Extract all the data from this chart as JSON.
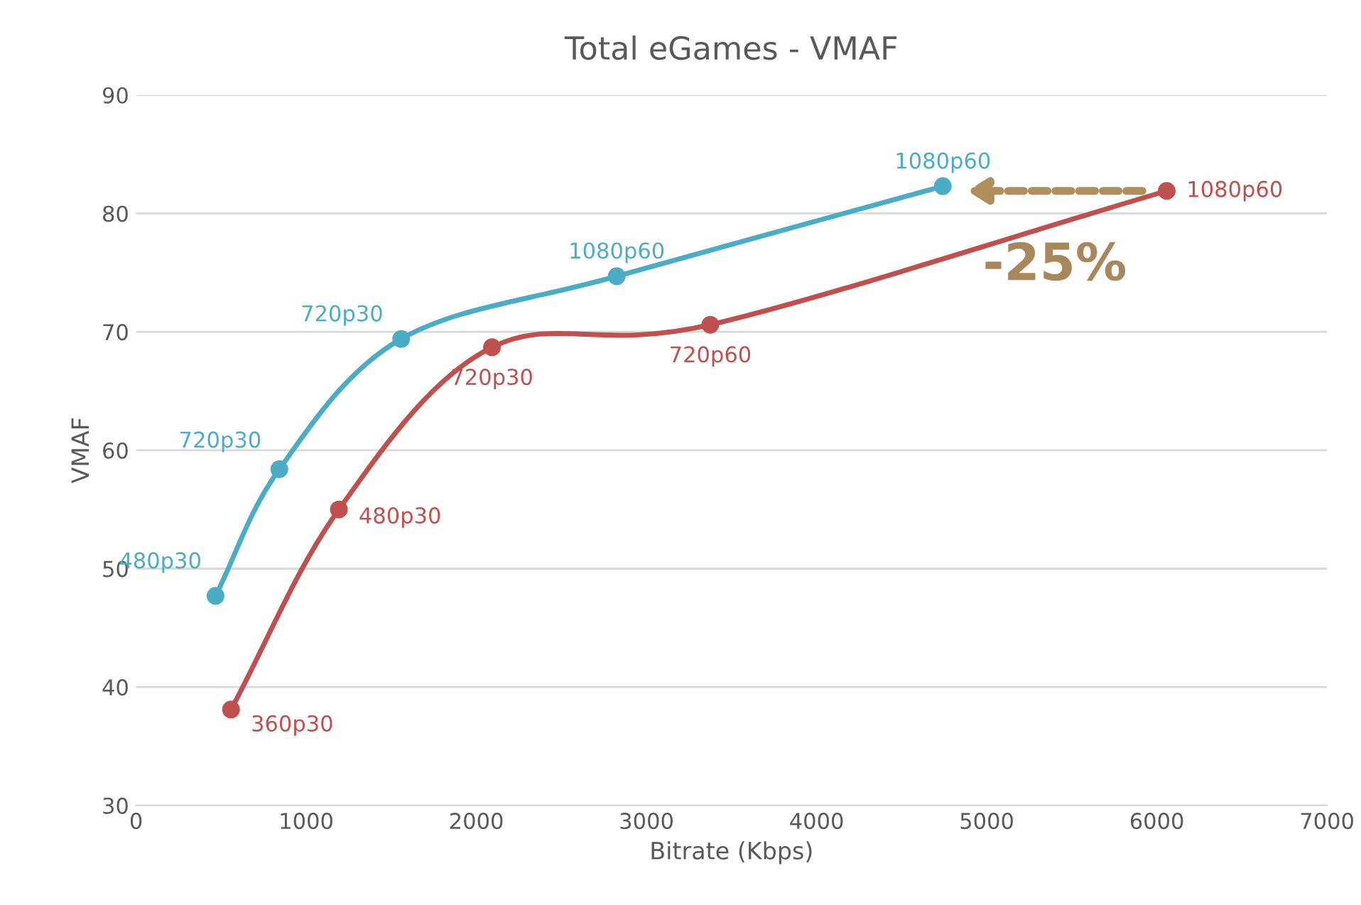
{
  "chart_data": {
    "type": "line",
    "title": "Total eGames - VMAF",
    "xlabel": "Bitrate (Kbps)",
    "ylabel": "VMAF",
    "xlim": [
      0,
      7000
    ],
    "xticks": [
      0,
      1000,
      2000,
      3000,
      4000,
      5000,
      6000,
      7000
    ],
    "ylim": [
      30,
      90
    ],
    "yticks": [
      30,
      40,
      50,
      60,
      70,
      80,
      90
    ],
    "grid": "y",
    "marker": "circle",
    "line_style": "solid",
    "legend": false,
    "series": [
      {
        "color": "#4bacc6",
        "x": [
          467,
          842,
          1558,
          2825,
          4742
        ],
        "values": [
          47.7,
          58.4,
          69.4,
          74.7,
          82.3
        ]
      },
      {
        "color": "#c0504d",
        "x": [
          558,
          1192,
          2092,
          3375,
          6058
        ],
        "values": [
          38.1,
          55.0,
          68.7,
          70.6,
          81.9
        ]
      }
    ],
    "annotations": [
      {
        "text": "480p30",
        "x": 467,
        "y": 47.7
      },
      {
        "text": "720p30",
        "x": 842,
        "y": 58.4
      },
      {
        "text": "720p30",
        "x": 1558,
        "y": 69.4
      },
      {
        "text": "1080p60",
        "x": 2825,
        "y": 74.7
      },
      {
        "text": "1080p60",
        "x": 4742,
        "y": 82.3
      },
      {
        "text": "360p30",
        "x": 558,
        "y": 38.1
      },
      {
        "text": "480p30",
        "x": 1192,
        "y": 55.0
      },
      {
        "text": "720p30",
        "x": 2092,
        "y": 68.7
      },
      {
        "text": "720p60",
        "x": 3375,
        "y": 70.6
      },
      {
        "text": "1080p60",
        "x": 6058,
        "y": 81.9
      },
      "-25%"
    ]
  }
}
